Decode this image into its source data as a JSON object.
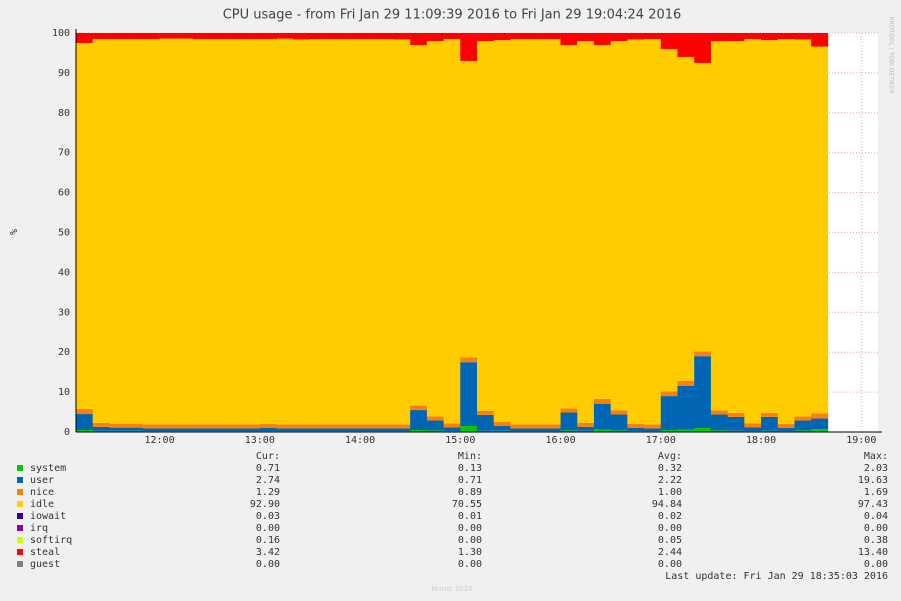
{
  "chart_data": {
    "type": "stacked-area",
    "title": "CPU usage - from Fri Jan 29 11:09:39 2016 to Fri Jan 29 19:04:24 2016",
    "y_label": "%",
    "side_label": "RRDTOOL / TOBI OETIKER",
    "x": [
      "11:10",
      "11:20",
      "11:30",
      "11:40",
      "11:50",
      "12:00",
      "12:10",
      "12:20",
      "12:30",
      "12:40",
      "12:50",
      "13:00",
      "13:10",
      "13:20",
      "13:30",
      "13:40",
      "13:50",
      "14:00",
      "14:10",
      "14:20",
      "14:30",
      "14:40",
      "14:50",
      "15:00",
      "15:10",
      "15:20",
      "15:30",
      "15:40",
      "15:50",
      "16:00",
      "16:10",
      "16:20",
      "16:30",
      "16:40",
      "16:50",
      "17:00",
      "17:10",
      "17:20",
      "17:30",
      "17:40",
      "17:50",
      "18:00",
      "18:10",
      "18:20",
      "18:30"
    ],
    "xlim": [
      "11:10",
      "19:10"
    ],
    "xticks": [
      "12:00",
      "13:00",
      "14:00",
      "15:00",
      "16:00",
      "17:00",
      "18:00",
      "19:00"
    ],
    "ylim": [
      0,
      100
    ],
    "yticks": [
      0,
      10,
      20,
      30,
      40,
      50,
      60,
      70,
      80,
      90,
      100
    ],
    "grid": true,
    "stat_headers": [
      "Cur:",
      "Min:",
      "Avg:",
      "Max:"
    ],
    "series": [
      {
        "name": "system",
        "color": "#00cc00",
        "cur": "0.71",
        "min": "0.13",
        "avg": "0.32",
        "max": "2.03",
        "values": [
          0.5,
          0.3,
          0.3,
          0.3,
          0.2,
          0.2,
          0.2,
          0.2,
          0.2,
          0.2,
          0.2,
          0.2,
          0.2,
          0.2,
          0.2,
          0.2,
          0.2,
          0.2,
          0.2,
          0.2,
          0.5,
          0.4,
          0.2,
          1.5,
          0.3,
          0.3,
          0.2,
          0.2,
          0.2,
          0.4,
          0.3,
          0.6,
          0.4,
          0.2,
          0.2,
          0.5,
          0.6,
          1,
          0.4,
          0.3,
          0.2,
          0.3,
          0.2,
          0.4,
          0.7
        ]
      },
      {
        "name": "user",
        "color": "#0066b3",
        "cur": "2.74",
        "min": "0.71",
        "avg": "2.22",
        "max": "19.63",
        "values": [
          4,
          1,
          0.8,
          0.8,
          0.7,
          0.7,
          0.7,
          0.7,
          0.7,
          0.7,
          0.7,
          0.8,
          0.7,
          0.7,
          0.7,
          0.7,
          0.7,
          0.7,
          0.7,
          0.7,
          5,
          2.5,
          1,
          16,
          4,
          1.2,
          0.7,
          0.7,
          0.7,
          4.5,
          1,
          6.5,
          4,
          0.8,
          0.7,
          8.5,
          11,
          18,
          4,
          3.5,
          1,
          3.5,
          0.8,
          2.5,
          2.7
        ]
      },
      {
        "name": "nice",
        "color": "#ff8000",
        "cur": "1.29",
        "min": "0.89",
        "avg": "1.00",
        "max": "1.69",
        "values": [
          1.3,
          1,
          1,
          1,
          1,
          1,
          1,
          1,
          1,
          1,
          1,
          1,
          1,
          1,
          1,
          1,
          1,
          1,
          1,
          1,
          1.2,
          1,
          1,
          1.2,
          1,
          1,
          1,
          1,
          1,
          1,
          1,
          1.2,
          1,
          1,
          1,
          1.2,
          1.2,
          1.2,
          1,
          1,
          1,
          1,
          1,
          1,
          1.3
        ]
      },
      {
        "name": "idle",
        "color": "#ffcc00",
        "cur": "92.90",
        "min": "70.55",
        "avg": "94.84",
        "max": "97.43",
        "values": [
          91.7,
          96.2,
          96.4,
          96.4,
          96.6,
          96.7,
          96.7,
          96.6,
          96.6,
          96.6,
          96.6,
          96.5,
          96.7,
          96.5,
          96.6,
          96.6,
          96.6,
          96.6,
          96.6,
          96.5,
          90.3,
          94.1,
          96.3,
          74.3,
          92.7,
          95.7,
          96.6,
          96.6,
          96.6,
          91.1,
          95.7,
          88.7,
          92.6,
          96.4,
          96.6,
          85.8,
          81.2,
          72.3,
          92.6,
          93.2,
          96.3,
          93.4,
          96.5,
          94.5,
          91.9
        ]
      },
      {
        "name": "iowait",
        "color": "#330099",
        "cur": "0.03",
        "min": "0.01",
        "avg": "0.02",
        "max": "0.04"
      },
      {
        "name": "irq",
        "color": "#990099",
        "cur": "0.00",
        "min": "0.00",
        "avg": "0.00",
        "max": "0.00"
      },
      {
        "name": "softirq",
        "color": "#ccff00",
        "cur": "0.16",
        "min": "0.00",
        "avg": "0.05",
        "max": "0.38"
      },
      {
        "name": "steal",
        "color": "#ff0000",
        "cur": "3.42",
        "min": "1.30",
        "avg": "2.44",
        "max": "13.40",
        "values": [
          2.5,
          1.5,
          1.5,
          1.5,
          1.5,
          1.4,
          1.4,
          1.5,
          1.5,
          1.5,
          1.5,
          1.5,
          1.4,
          1.6,
          1.5,
          1.5,
          1.5,
          1.5,
          1.5,
          1.6,
          3,
          2,
          1.5,
          7,
          2,
          1.8,
          1.5,
          1.5,
          1.5,
          3,
          2,
          3,
          2,
          1.6,
          1.5,
          4,
          6,
          7.5,
          2,
          2,
          1.5,
          1.8,
          1.5,
          1.6,
          3.4
        ]
      },
      {
        "name": "guest",
        "color": "#808080",
        "cur": "0.00",
        "min": "0.00",
        "avg": "0.00",
        "max": "0.00"
      }
    ],
    "last_update": "Last update: Fri Jan 29 18:35:03 2016",
    "footer": "Munin 2020"
  }
}
